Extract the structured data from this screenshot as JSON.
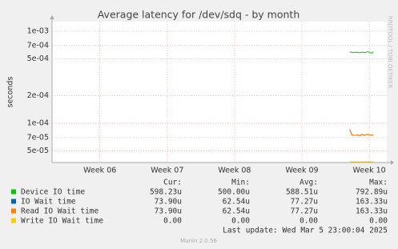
{
  "chart_data": {
    "type": "line",
    "title": "Average latency for /dev/sdq - by month",
    "y_label": "seconds",
    "side_text": "RRDTOOL / TOBI OETIKER",
    "log_scale": true,
    "grid": true,
    "xlim": [
      5.29,
      10.26
    ],
    "xticks": [
      {
        "value": 6,
        "label": "Week 06"
      },
      {
        "value": 7,
        "label": "Week 07"
      },
      {
        "value": 8,
        "label": "Week 08"
      },
      {
        "value": 9,
        "label": "Week 09"
      },
      {
        "value": 10,
        "label": "Week 10"
      }
    ],
    "ylim": [
      3.75e-05,
      0.00127
    ],
    "yticks": [
      {
        "value": 0.001,
        "label": "1e-03"
      },
      {
        "value": 0.0007,
        "label": "7e-04"
      },
      {
        "value": 0.0005,
        "label": "5e-04"
      },
      {
        "value": 0.0002,
        "label": "2e-04"
      },
      {
        "value": 0.0001,
        "label": "1e-04"
      },
      {
        "value": 7e-05,
        "label": "7e-05"
      },
      {
        "value": 5e-05,
        "label": "5e-05"
      }
    ],
    "x": [
      9.71,
      9.74,
      9.77,
      9.8,
      9.83,
      9.86,
      9.89,
      9.92,
      9.95,
      9.98,
      10.01,
      10.04,
      10.06
    ],
    "series": [
      {
        "name": "Device IO time",
        "color": "#00cc00",
        "values": [
          0.000595,
          0.00059,
          0.000585,
          0.000592,
          0.000588,
          0.000583,
          0.000594,
          0.000586,
          0.00059,
          0.0006,
          0.000584,
          0.000578,
          0.000598
        ]
      },
      {
        "name": "IO Wait time",
        "color": "#0066b3",
        "values": [
          8.6e-05,
          7.5e-05,
          7.4e-05,
          7.4e-05,
          7.5e-05,
          7.3e-05,
          7.6e-05,
          7.4e-05,
          7.5e-05,
          7.6e-05,
          7.4e-05,
          7.5e-05,
          7.4e-05
        ]
      },
      {
        "name": "Read IO Wait time",
        "color": "#ff8000",
        "values": [
          8.6e-05,
          7.5e-05,
          7.4e-05,
          7.4e-05,
          7.5e-05,
          7.3e-05,
          7.6e-05,
          7.4e-05,
          7.5e-05,
          7.6e-05,
          7.4e-05,
          7.5e-05,
          7.4e-05
        ]
      },
      {
        "name": "Write IO Wait time",
        "color": "#ffcc00",
        "values": [
          0,
          0,
          0,
          0,
          0,
          0,
          0,
          0,
          0,
          0,
          0,
          0,
          0
        ]
      }
    ],
    "legend_table": {
      "columns": [
        "Cur:",
        "Min:",
        "Avg:",
        "Max:"
      ],
      "rows": [
        [
          "598.23u",
          "500.00u",
          "588.51u",
          "792.89u"
        ],
        [
          "73.90u",
          "62.54u",
          "77.27u",
          "163.33u"
        ],
        [
          "73.90u",
          "62.54u",
          "77.27u",
          "163.33u"
        ],
        [
          "0.00",
          "0.00",
          "0.00",
          "0.00"
        ]
      ]
    },
    "last_update": "Last update: Wed Mar  5 23:00:04 2025",
    "footer": "Munin 2.0.56"
  }
}
